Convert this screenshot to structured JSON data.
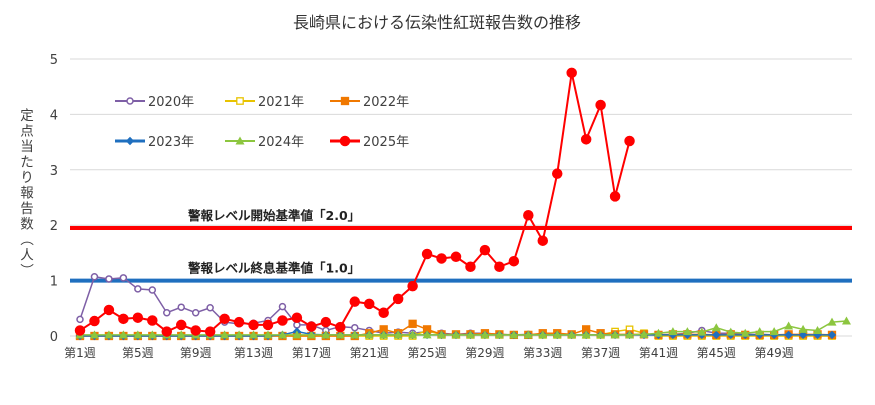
{
  "chart_data": {
    "type": "line",
    "title": "長崎県における伝染性紅斑報告数の推移",
    "ylabel": "定点当たり報告数（人）",
    "xlabel": "",
    "ylim": [
      0,
      5
    ],
    "yticks": [
      0,
      1,
      2,
      3,
      4,
      5
    ],
    "grid": true,
    "legend_position": "top-left",
    "x_tick_labels": [
      "第1週",
      "第5週",
      "第9週",
      "第13週",
      "第17週",
      "第21週",
      "第25週",
      "第29週",
      "第33週",
      "第37週",
      "第41週",
      "第45週",
      "第49週"
    ],
    "x_tick_weeks": [
      1,
      5,
      9,
      13,
      17,
      21,
      25,
      29,
      33,
      37,
      41,
      45,
      49
    ],
    "week_count": 53,
    "reference_lines": [
      {
        "label": "警報レベル開始基準値「2.0」",
        "value": 1.95,
        "color": "#ff0000"
      },
      {
        "label": "警報レベル終息基準値「1.0」",
        "value": 1.0,
        "color": "#1f6fbf"
      }
    ],
    "series": [
      {
        "name": "2020年",
        "color": "#7e5fa6",
        "marker": "circle-open",
        "values": [
          0.3,
          1.07,
          1.03,
          1.05,
          0.85,
          0.83,
          0.42,
          0.52,
          0.42,
          0.51,
          0.25,
          0.22,
          0.23,
          0.28,
          0.53,
          0.2,
          0.2,
          0.1,
          0.17,
          0.15,
          0.1,
          0.05,
          0.07,
          0.05,
          0.08,
          0.05,
          0.03,
          0.05,
          0.05,
          0.03,
          0.02,
          0.03,
          0.02,
          0.02,
          0.02,
          0.02,
          0.02,
          0.02,
          0.02,
          0.02,
          0.02,
          0.03,
          0.05,
          0.1,
          0.05,
          0.05,
          0.03,
          0.03,
          0.02,
          0.02,
          0.02,
          0.0,
          0.0
        ]
      },
      {
        "name": "2021年",
        "color": "#e8c300",
        "marker": "square-open",
        "values": [
          0.0,
          0.0,
          0.0,
          0.0,
          0.0,
          0.0,
          0.0,
          0.0,
          0.0,
          0.0,
          0.0,
          0.0,
          0.0,
          0.0,
          0.0,
          0.0,
          0.0,
          0.0,
          0.0,
          0.0,
          0.0,
          0.0,
          0.0,
          0.0,
          0.1,
          0.02,
          0.02,
          0.02,
          0.02,
          0.02,
          0.02,
          0.02,
          0.02,
          0.02,
          0.02,
          0.02,
          0.02,
          0.08,
          0.12,
          0.05,
          0.0,
          0.0,
          0.0,
          0.0,
          0.0,
          0.0,
          0.0,
          0.0,
          0.0,
          0.0,
          0.0,
          0.0,
          0.0
        ]
      },
      {
        "name": "2022年",
        "color": "#f07800",
        "marker": "square",
        "values": [
          0.0,
          0.0,
          0.0,
          0.0,
          0.0,
          0.0,
          0.0,
          0.0,
          0.0,
          0.0,
          0.0,
          0.0,
          0.0,
          0.0,
          0.0,
          0.0,
          0.0,
          0.0,
          0.0,
          0.0,
          0.05,
          0.12,
          0.05,
          0.22,
          0.12,
          0.03,
          0.03,
          0.03,
          0.05,
          0.03,
          0.02,
          0.02,
          0.05,
          0.05,
          0.03,
          0.12,
          0.05,
          0.03,
          0.03,
          0.03,
          0.02,
          0.03,
          0.03,
          0.03,
          0.02,
          0.03,
          0.02,
          0.02,
          0.02,
          0.03,
          0.03,
          0.03,
          0.02
        ]
      },
      {
        "name": "2023年",
        "color": "#1f6fbf",
        "marker": "diamond",
        "values": [
          0.0,
          0.0,
          0.0,
          0.0,
          0.0,
          0.0,
          0.0,
          0.0,
          0.0,
          0.0,
          0.0,
          0.0,
          0.0,
          0.0,
          0.02,
          0.08,
          0.03,
          0.02,
          0.02,
          0.02,
          0.02,
          0.02,
          0.02,
          0.02,
          0.02,
          0.02,
          0.02,
          0.02,
          0.02,
          0.02,
          0.02,
          0.02,
          0.02,
          0.02,
          0.02,
          0.02,
          0.02,
          0.02,
          0.02,
          0.02,
          0.02,
          0.02,
          0.02,
          0.02,
          0.02,
          0.02,
          0.02,
          0.02,
          0.02,
          0.02,
          0.02,
          0.02,
          0.02
        ]
      },
      {
        "name": "2024年",
        "color": "#8cc63f",
        "marker": "triangle",
        "values": [
          0.02,
          0.02,
          0.02,
          0.02,
          0.02,
          0.02,
          0.02,
          0.02,
          0.02,
          0.02,
          0.02,
          0.02,
          0.02,
          0.02,
          0.02,
          0.02,
          0.02,
          0.02,
          0.02,
          0.02,
          0.02,
          0.02,
          0.02,
          0.02,
          0.02,
          0.02,
          0.02,
          0.02,
          0.02,
          0.02,
          0.02,
          0.02,
          0.02,
          0.02,
          0.02,
          0.02,
          0.02,
          0.02,
          0.02,
          0.03,
          0.05,
          0.08,
          0.08,
          0.07,
          0.15,
          0.07,
          0.05,
          0.08,
          0.08,
          0.18,
          0.12,
          0.1,
          0.25,
          0.27
        ]
      },
      {
        "name": "2025年",
        "color": "#ff0000",
        "marker": "circle",
        "values": [
          0.1,
          0.27,
          0.47,
          0.31,
          0.33,
          0.28,
          0.08,
          0.2,
          0.1,
          0.08,
          0.31,
          0.25,
          0.2,
          0.2,
          0.28,
          0.33,
          0.17,
          0.25,
          0.16,
          0.62,
          0.58,
          0.42,
          0.67,
          0.9,
          1.48,
          1.4,
          1.43,
          1.25,
          1.55,
          1.25,
          1.35,
          2.18,
          1.72,
          2.93,
          4.75,
          3.55,
          4.17,
          2.52,
          3.52
        ]
      }
    ]
  }
}
